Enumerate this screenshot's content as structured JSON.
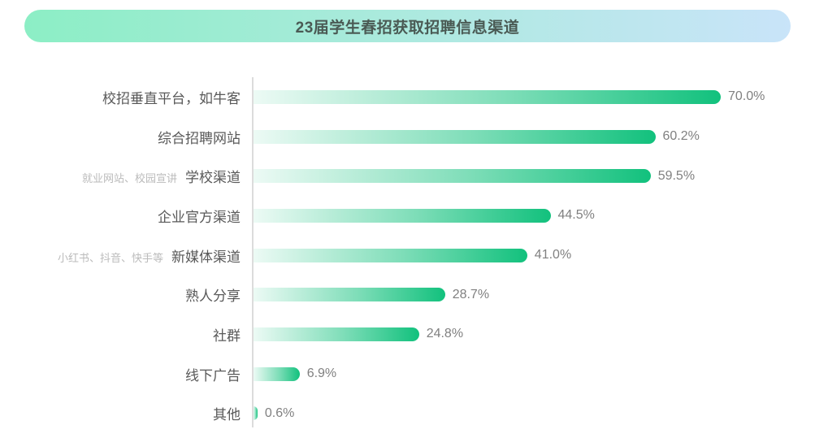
{
  "header": {
    "title": "23届学生春招获取招聘信息渠道"
  },
  "chart_data": {
    "type": "bar",
    "orientation": "horizontal",
    "title": "23届学生春招获取招聘信息渠道",
    "xlabel": "",
    "ylabel": "",
    "xlim": [
      0,
      70
    ],
    "grid": false,
    "legend": false,
    "unit": "%",
    "categories": [
      "校招垂直平台，如牛客",
      "综合招聘网站",
      "学校渠道",
      "企业官方渠道",
      "新媒体渠道",
      "熟人分享",
      "社群",
      "线下广告",
      "其他"
    ],
    "sub_labels": [
      "",
      "",
      "就业网站、校园宣讲",
      "",
      "小红书、抖音、快手等",
      "",
      "",
      "",
      ""
    ],
    "values": [
      70.0,
      60.2,
      59.5,
      44.5,
      41.0,
      28.7,
      24.8,
      6.9,
      0.6
    ],
    "value_labels": [
      "70.0%",
      "60.2%",
      "59.5%",
      "44.5%",
      "41.0%",
      "28.7%",
      "24.8%",
      "6.9%",
      "0.6%"
    ]
  },
  "colors": {
    "banner_gradient_start": "#8CEEC5",
    "banner_gradient_end": "#C9E4F9",
    "banner_text": "#4A5A54",
    "bar_gradient_start": "#EAF8F1",
    "bar_gradient_end": "#12C17D",
    "category_label": "#595959",
    "sub_label": "#BBBBBB",
    "value_label": "#808080",
    "axis_line": "#DCDCDC",
    "background": "#FFFFFF"
  }
}
